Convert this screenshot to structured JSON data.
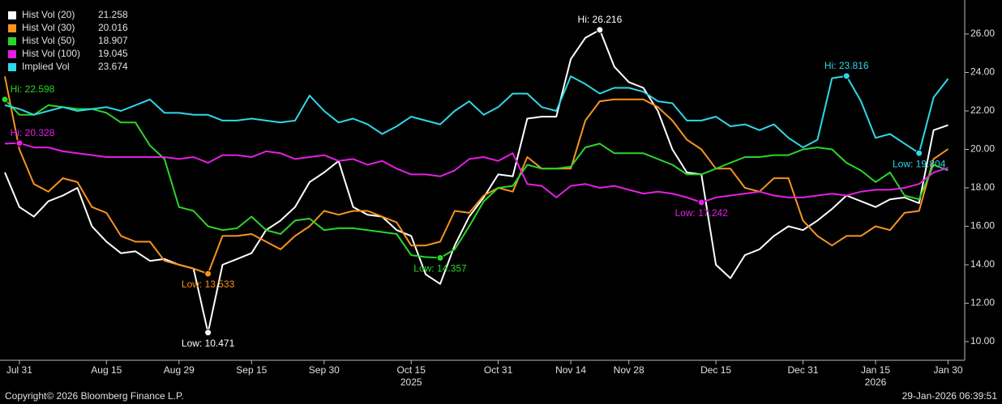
{
  "chart_data": {
    "type": "line",
    "categories": [
      null,
      "Jul 31",
      null,
      null,
      null,
      null,
      null,
      "Aug 15",
      null,
      null,
      null,
      null,
      "Aug 29",
      null,
      null,
      null,
      null,
      "Sep 15",
      null,
      null,
      null,
      null,
      "Sep 30",
      null,
      null,
      null,
      null,
      null,
      "Oct 15",
      null,
      null,
      null,
      null,
      null,
      "Oct 31",
      null,
      null,
      null,
      null,
      "Nov 14",
      null,
      null,
      null,
      "Nov 28",
      null,
      null,
      null,
      null,
      null,
      "Dec 15",
      null,
      null,
      null,
      null,
      null,
      "Dec 31",
      null,
      null,
      null,
      null,
      "Jan 15",
      null,
      null,
      null,
      null,
      "Jan 30"
    ],
    "x_sublabels": {
      "Oct 15": "2025",
      "Jan 15": "2026"
    },
    "series": [
      {
        "name": "Hist Vol (20)",
        "color": "#ffffff",
        "hi_label": "Hi: 26.216",
        "low_label": "Low: 10.471",
        "values": [
          18.8,
          17.0,
          16.5,
          17.3,
          17.6,
          18.0,
          16.0,
          15.2,
          14.6,
          14.7,
          14.2,
          14.3,
          14.0,
          13.8,
          10.471,
          14.0,
          14.3,
          14.6,
          15.8,
          16.3,
          17.0,
          18.3,
          18.8,
          19.4,
          17.0,
          16.6,
          16.5,
          15.8,
          15.5,
          13.5,
          13.0,
          15.0,
          16.5,
          17.5,
          18.7,
          18.6,
          21.6,
          21.7,
          21.7,
          24.7,
          25.8,
          26.216,
          24.3,
          23.5,
          23.2,
          22.0,
          20.0,
          18.8,
          18.7,
          14.0,
          13.3,
          14.5,
          14.8,
          15.5,
          16.0,
          15.8,
          16.3,
          16.9,
          17.6,
          17.3,
          17.0,
          17.4,
          17.5,
          17.2,
          21.0,
          21.258
        ]
      },
      {
        "name": "Hist Vol (30)",
        "color": "#f7941d",
        "low_label": "Low: 13.533",
        "values": [
          23.8,
          20.0,
          18.2,
          17.8,
          18.5,
          18.3,
          17.0,
          16.7,
          15.5,
          15.2,
          15.2,
          14.2,
          14.0,
          13.8,
          13.533,
          15.5,
          15.5,
          15.6,
          15.2,
          14.8,
          15.5,
          16.0,
          16.8,
          16.6,
          16.8,
          16.8,
          16.5,
          16.2,
          15.0,
          15.0,
          15.2,
          16.8,
          16.7,
          17.6,
          18.0,
          17.8,
          19.6,
          19.0,
          19.0,
          19.0,
          21.5,
          22.5,
          22.6,
          22.6,
          22.6,
          22.2,
          21.5,
          20.5,
          20.0,
          19.0,
          19.0,
          18.0,
          17.8,
          18.5,
          18.5,
          16.3,
          15.5,
          15.0,
          15.5,
          15.5,
          16.0,
          15.8,
          16.7,
          16.8,
          19.5,
          20.016
        ]
      },
      {
        "name": "Hist Vol (50)",
        "color": "#2bd62b",
        "hi_label": "Hi: 22.598",
        "low_label": "Low: 14.357",
        "values": [
          22.598,
          21.8,
          21.8,
          22.3,
          22.2,
          22.1,
          22.1,
          21.9,
          21.4,
          21.4,
          20.2,
          19.5,
          17.0,
          16.8,
          16.0,
          15.8,
          15.9,
          16.5,
          15.8,
          15.6,
          16.3,
          16.4,
          15.8,
          15.9,
          15.9,
          15.8,
          15.7,
          15.6,
          14.5,
          14.4,
          14.357,
          14.8,
          16.0,
          17.3,
          18.0,
          18.1,
          19.2,
          19.0,
          19.0,
          19.1,
          20.1,
          20.3,
          19.8,
          19.8,
          19.8,
          19.5,
          19.2,
          18.7,
          18.7,
          19.0,
          19.3,
          19.6,
          19.6,
          19.7,
          19.7,
          20.0,
          20.1,
          20.0,
          19.3,
          18.9,
          18.3,
          18.8,
          17.6,
          17.4,
          19.2,
          18.907
        ]
      },
      {
        "name": "Hist Vol (100)",
        "color": "#e61ee6",
        "hi_label": "Hi: 20.328",
        "low_label": "Low: 17.242",
        "values": [
          20.3,
          20.328,
          20.1,
          20.1,
          19.9,
          19.8,
          19.7,
          19.6,
          19.6,
          19.6,
          19.6,
          19.6,
          19.5,
          19.6,
          19.3,
          19.7,
          19.7,
          19.6,
          19.9,
          19.8,
          19.5,
          19.6,
          19.7,
          19.4,
          19.5,
          19.2,
          19.4,
          19.0,
          18.7,
          18.7,
          18.6,
          18.9,
          19.5,
          19.6,
          19.4,
          19.8,
          18.2,
          18.1,
          17.5,
          18.1,
          18.2,
          18.0,
          18.1,
          17.9,
          17.7,
          17.8,
          17.7,
          17.5,
          17.242,
          17.5,
          17.6,
          17.7,
          17.8,
          17.6,
          17.5,
          17.5,
          17.6,
          17.7,
          17.6,
          17.8,
          17.9,
          17.9,
          18.0,
          18.2,
          18.8,
          19.045
        ]
      },
      {
        "name": "Implied Vol",
        "color": "#2fd8e8",
        "hi_label": "Hi: 23.816",
        "low_label": "Low: 19.804",
        "values": [
          22.3,
          22.1,
          21.8,
          22.0,
          22.2,
          22.0,
          22.1,
          22.2,
          22.0,
          22.3,
          22.6,
          21.9,
          21.9,
          21.8,
          21.8,
          21.5,
          21.5,
          21.6,
          21.5,
          21.4,
          21.5,
          22.8,
          22.0,
          21.4,
          21.6,
          21.3,
          20.8,
          21.2,
          21.7,
          21.5,
          21.3,
          22.0,
          22.5,
          21.8,
          22.2,
          22.9,
          22.9,
          22.2,
          22.0,
          23.8,
          23.4,
          22.9,
          23.2,
          23.2,
          23.0,
          22.5,
          22.4,
          21.5,
          21.5,
          21.7,
          21.2,
          21.3,
          21.0,
          21.3,
          20.6,
          20.1,
          20.5,
          23.7,
          23.816,
          22.5,
          20.6,
          20.8,
          20.3,
          19.804,
          22.7,
          23.674
        ]
      }
    ],
    "ylim": [
      9.03,
      27.77
    ],
    "yticks": [
      {
        "value": 10,
        "label": "10.00"
      },
      {
        "value": 12,
        "label": "12.00"
      },
      {
        "value": 14,
        "label": "14.00"
      },
      {
        "value": 16,
        "label": "16.00"
      },
      {
        "value": 18,
        "label": "18.00"
      },
      {
        "value": 20,
        "label": "20.00"
      },
      {
        "value": 22,
        "label": "22.00"
      },
      {
        "value": 24,
        "label": "24.00"
      },
      {
        "value": 26,
        "label": "26.00"
      }
    ],
    "footer_left": "Copyright© 2026 Bloomberg Finance L.P.",
    "footer_right": "29-Jan-2026 06:39:51"
  }
}
